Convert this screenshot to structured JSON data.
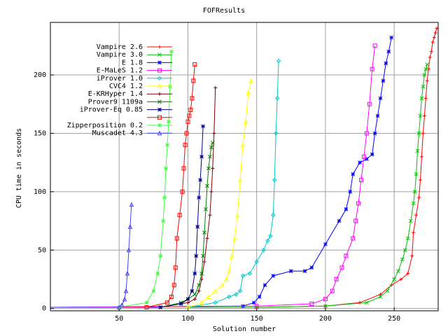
{
  "chart_data": {
    "type": "line",
    "title": "FOFResults",
    "xlabel": "Solution number",
    "ylabel": "CPU time in seconds",
    "xlim": [
      0,
      282
    ],
    "ylim": [
      -2,
      245
    ],
    "xticks": [
      50,
      100,
      150,
      200,
      250
    ],
    "yticks": [
      0,
      50,
      100,
      150,
      200
    ],
    "grid": true,
    "legend_position": "top-left",
    "series": [
      {
        "name": "Vampire 2.6",
        "color": "#ff0000",
        "marker": "plus",
        "x": [
          0,
          150,
          200,
          225,
          240,
          248,
          255,
          260,
          263,
          264,
          266,
          268,
          269,
          270,
          271,
          272,
          273,
          274,
          275,
          276,
          277,
          278,
          279,
          280,
          281
        ],
        "y": [
          1,
          1,
          2,
          5,
          12,
          20,
          25,
          30,
          45,
          65,
          80,
          95,
          110,
          130,
          150,
          165,
          180,
          195,
          205,
          215,
          220,
          228,
          232,
          236,
          240
        ]
      },
      {
        "name": "Vampire 3.0",
        "color": "#00c000",
        "marker": "x",
        "x": [
          0,
          150,
          200,
          230,
          240,
          245,
          250,
          253,
          256,
          258,
          260,
          262,
          264,
          265,
          266,
          267,
          268,
          269,
          270,
          271,
          272,
          273,
          274
        ],
        "y": [
          1,
          1,
          2,
          5,
          10,
          15,
          25,
          32,
          42,
          50,
          60,
          75,
          90,
          100,
          115,
          135,
          150,
          165,
          180,
          190,
          200,
          205,
          209
        ]
      },
      {
        "name": "E 1.8",
        "color": "#0000ff",
        "marker": "asterisk",
        "x": [
          0,
          140,
          148,
          152,
          156,
          162,
          175,
          185,
          190,
          200,
          210,
          215,
          218,
          220,
          225,
          230,
          234,
          236,
          238,
          240,
          242,
          244,
          246,
          248
        ],
        "y": [
          1,
          2,
          5,
          10,
          20,
          28,
          32,
          32,
          35,
          55,
          75,
          85,
          100,
          115,
          125,
          128,
          132,
          150,
          165,
          180,
          195,
          210,
          220,
          232
        ]
      },
      {
        "name": "E-MaLeS 1.2",
        "color": "#ff00ff",
        "marker": "square",
        "x": [
          0,
          150,
          190,
          200,
          205,
          208,
          212,
          215,
          220,
          222,
          224,
          226,
          228,
          230,
          232,
          234,
          236
        ],
        "y": [
          1,
          2,
          4,
          8,
          15,
          25,
          35,
          45,
          60,
          75,
          90,
          110,
          130,
          150,
          175,
          205,
          225
        ]
      },
      {
        "name": "iProver 1.0",
        "color": "#00c8c8",
        "marker": "diamond",
        "x": [
          0,
          100,
          120,
          130,
          135,
          138,
          140,
          145,
          150,
          155,
          158,
          160,
          162,
          163,
          164,
          165,
          166
        ],
        "y": [
          1,
          1,
          5,
          10,
          12,
          15,
          28,
          30,
          40,
          50,
          58,
          62,
          80,
          110,
          150,
          180,
          212
        ]
      },
      {
        "name": "CVC4 1.2",
        "color": "#ffff00",
        "marker": "triangle",
        "x": [
          0,
          100,
          110,
          115,
          120,
          125,
          128,
          130,
          132,
          134,
          136,
          138,
          140,
          142,
          144,
          146
        ],
        "y": [
          1,
          1,
          5,
          10,
          15,
          20,
          25,
          32,
          45,
          60,
          80,
          110,
          140,
          160,
          185,
          195
        ]
      },
      {
        "name": "E-KRHyper 1.4",
        "color": "#800000",
        "marker": "plus",
        "x": [
          0,
          80,
          100,
          105,
          108,
          110,
          112,
          114,
          116,
          117,
          118,
          119,
          120
        ],
        "y": [
          1,
          1,
          5,
          8,
          15,
          25,
          40,
          60,
          80,
          100,
          120,
          150,
          189
        ]
      },
      {
        "name": "Prover9 1109a",
        "color": "#008000",
        "marker": "x",
        "x": [
          0,
          80,
          95,
          100,
          105,
          108,
          110,
          111,
          112,
          113,
          114,
          115,
          116,
          117,
          118
        ],
        "y": [
          1,
          1,
          5,
          8,
          12,
          20,
          30,
          45,
          65,
          85,
          105,
          120,
          130,
          138,
          142
        ]
      },
      {
        "name": "iProver-Eq 0.85",
        "color": "#000080",
        "marker": "asterisk",
        "x": [
          0,
          80,
          95,
          100,
          103,
          105,
          106,
          107,
          108,
          109,
          110,
          111
        ],
        "y": [
          1,
          1,
          4,
          8,
          15,
          30,
          45,
          70,
          95,
          110,
          130,
          156
        ]
      },
      {
        "name": "",
        "color": "#ff0000",
        "marker": "square",
        "x": [
          0,
          70,
          85,
          88,
          90,
          91,
          92,
          94,
          96,
          97,
          98,
          99,
          100,
          101,
          102,
          103,
          104,
          105
        ],
        "y": [
          1,
          1,
          5,
          10,
          20,
          35,
          60,
          80,
          100,
          120,
          140,
          150,
          160,
          165,
          170,
          180,
          195,
          209
        ]
      },
      {
        "name": "Zipperposition 0.2",
        "color": "#40ff40",
        "marker": "star",
        "x": [
          0,
          50,
          70,
          75,
          78,
          80,
          82,
          83,
          84,
          85,
          86,
          87,
          88
        ],
        "y": [
          1,
          1,
          5,
          15,
          30,
          45,
          75,
          95,
          120,
          140,
          160,
          190,
          220
        ]
      },
      {
        "name": "Muscadet 4.3",
        "color": "#4040ff",
        "marker": "triangle",
        "x": [
          0,
          50,
          52,
          54,
          55,
          56,
          57,
          58,
          59
        ],
        "y": [
          1,
          1,
          3,
          8,
          15,
          30,
          50,
          70,
          89
        ]
      }
    ]
  }
}
